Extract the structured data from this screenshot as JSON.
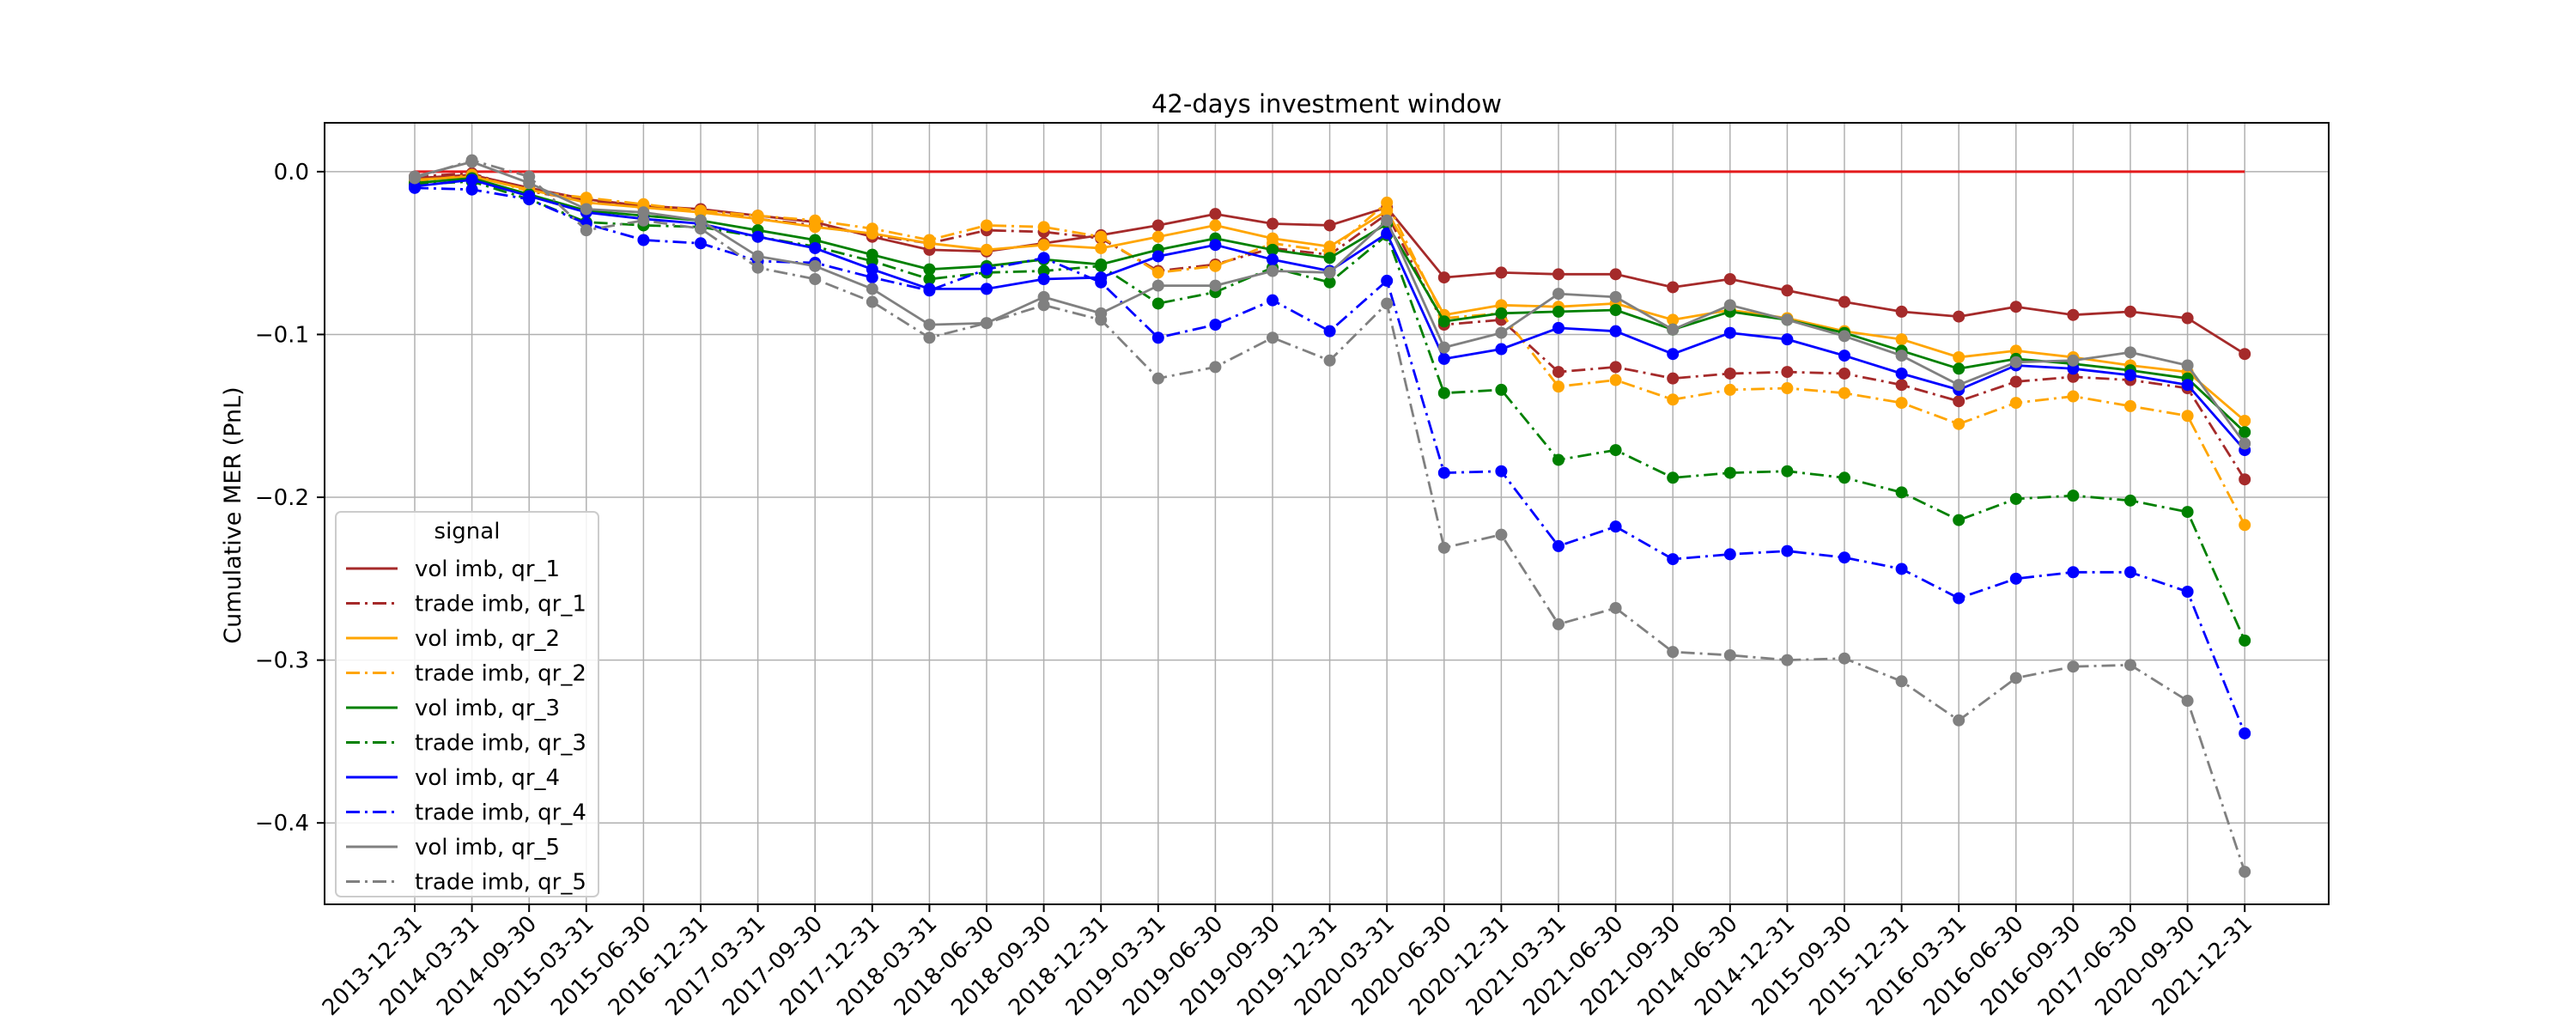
{
  "chart_data": {
    "type": "line",
    "title": "42-days investment window",
    "xlabel": "",
    "ylabel": "Cumulative MER (PnL)",
    "ylim": [
      -0.45,
      0.03
    ],
    "yticks": [
      "0.0",
      "−0.1",
      "−0.2",
      "−0.3",
      "−0.4"
    ],
    "grid": true,
    "legend": {
      "title": "signal",
      "placement": "center-left"
    },
    "baseline": {
      "value": 0.0,
      "color": "#e41a1c"
    },
    "categories": [
      "2013-12-31",
      "2014-03-31",
      "2014-09-30",
      "2015-03-31",
      "2015-06-30",
      "2016-12-31",
      "2017-03-31",
      "2017-09-30",
      "2017-12-31",
      "2018-03-31",
      "2018-06-30",
      "2018-09-30",
      "2018-12-31",
      "2019-03-31",
      "2019-06-30",
      "2019-09-30",
      "2019-12-31",
      "2020-03-31",
      "2020-06-30",
      "2020-12-31",
      "2021-03-31",
      "2021-06-30",
      "2021-09-30",
      "2014-06-30",
      "2014-12-31",
      "2015-09-30",
      "2015-12-31",
      "2016-03-31",
      "2016-06-30",
      "2016-09-30",
      "2017-06-30",
      "2020-09-30",
      "2021-12-31"
    ],
    "series": [
      {
        "name": "vol imb, qr_1",
        "color": "#a52a2a",
        "dash": "solid",
        "values": [
          -0.004,
          -0.002,
          -0.01,
          -0.017,
          -0.021,
          -0.023,
          -0.027,
          -0.031,
          -0.04,
          -0.048,
          -0.049,
          -0.044,
          -0.039,
          -0.033,
          -0.026,
          -0.032,
          -0.033,
          -0.022,
          -0.065,
          -0.062,
          -0.063,
          -0.063,
          -0.071,
          -0.066,
          -0.073,
          -0.08,
          -0.086,
          -0.089,
          -0.083,
          -0.088,
          -0.086,
          -0.09,
          -0.112
        ]
      },
      {
        "name": "trade imb, qr_1",
        "color": "#a52a2a",
        "dash": "dashdot",
        "values": [
          -0.003,
          -0.001,
          -0.012,
          -0.018,
          -0.022,
          -0.024,
          -0.029,
          -0.033,
          -0.039,
          -0.044,
          -0.036,
          -0.037,
          -0.041,
          -0.061,
          -0.057,
          -0.047,
          -0.051,
          -0.026,
          -0.094,
          -0.091,
          -0.123,
          -0.12,
          -0.127,
          -0.124,
          -0.123,
          -0.124,
          -0.131,
          -0.141,
          -0.129,
          -0.126,
          -0.128,
          -0.133,
          -0.189
        ]
      },
      {
        "name": "vol imb, qr_2",
        "color": "#ffa500",
        "dash": "solid",
        "values": [
          -0.005,
          -0.003,
          -0.011,
          -0.019,
          -0.022,
          -0.025,
          -0.029,
          -0.034,
          -0.038,
          -0.044,
          -0.048,
          -0.045,
          -0.047,
          -0.04,
          -0.033,
          -0.041,
          -0.046,
          -0.024,
          -0.088,
          -0.082,
          -0.083,
          -0.081,
          -0.091,
          -0.085,
          -0.09,
          -0.098,
          -0.103,
          -0.114,
          -0.11,
          -0.114,
          -0.119,
          -0.123,
          -0.153
        ]
      },
      {
        "name": "trade imb, qr_2",
        "color": "#ffa500",
        "dash": "dashdot",
        "values": [
          -0.006,
          -0.002,
          -0.012,
          -0.016,
          -0.02,
          -0.024,
          -0.027,
          -0.03,
          -0.035,
          -0.042,
          -0.033,
          -0.034,
          -0.04,
          -0.062,
          -0.058,
          -0.044,
          -0.049,
          -0.019,
          -0.09,
          -0.087,
          -0.132,
          -0.128,
          -0.14,
          -0.134,
          -0.133,
          -0.136,
          -0.142,
          -0.155,
          -0.142,
          -0.138,
          -0.144,
          -0.15,
          -0.217
        ]
      },
      {
        "name": "vol imb, qr_3",
        "color": "#008000",
        "dash": "solid",
        "values": [
          -0.007,
          -0.004,
          -0.014,
          -0.024,
          -0.027,
          -0.03,
          -0.036,
          -0.042,
          -0.051,
          -0.06,
          -0.058,
          -0.054,
          -0.057,
          -0.048,
          -0.041,
          -0.048,
          -0.053,
          -0.032,
          -0.092,
          -0.087,
          -0.086,
          -0.085,
          -0.097,
          -0.086,
          -0.091,
          -0.099,
          -0.11,
          -0.121,
          -0.115,
          -0.118,
          -0.122,
          -0.127,
          -0.16
        ]
      },
      {
        "name": "trade imb, qr_3",
        "color": "#008000",
        "dash": "dashdot",
        "values": [
          -0.008,
          -0.006,
          -0.017,
          -0.031,
          -0.033,
          -0.034,
          -0.04,
          -0.046,
          -0.055,
          -0.066,
          -0.062,
          -0.061,
          -0.058,
          -0.081,
          -0.074,
          -0.059,
          -0.068,
          -0.039,
          -0.136,
          -0.134,
          -0.177,
          -0.171,
          -0.188,
          -0.185,
          -0.184,
          -0.188,
          -0.197,
          -0.214,
          -0.201,
          -0.199,
          -0.202,
          -0.209,
          -0.288
        ]
      },
      {
        "name": "vol imb, qr_4",
        "color": "#0000ff",
        "dash": "solid",
        "values": [
          -0.009,
          -0.005,
          -0.015,
          -0.025,
          -0.029,
          -0.032,
          -0.04,
          -0.047,
          -0.06,
          -0.072,
          -0.072,
          -0.066,
          -0.065,
          -0.052,
          -0.045,
          -0.054,
          -0.061,
          -0.038,
          -0.115,
          -0.109,
          -0.096,
          -0.098,
          -0.112,
          -0.099,
          -0.103,
          -0.113,
          -0.124,
          -0.134,
          -0.119,
          -0.121,
          -0.125,
          -0.131,
          -0.171
        ]
      },
      {
        "name": "trade imb, qr_4",
        "color": "#0000ff",
        "dash": "dashdot",
        "values": [
          -0.01,
          -0.011,
          -0.017,
          -0.032,
          -0.042,
          -0.044,
          -0.055,
          -0.056,
          -0.065,
          -0.073,
          -0.06,
          -0.053,
          -0.068,
          -0.102,
          -0.094,
          -0.079,
          -0.098,
          -0.067,
          -0.185,
          -0.184,
          -0.23,
          -0.218,
          -0.238,
          -0.235,
          -0.233,
          -0.237,
          -0.244,
          -0.262,
          -0.25,
          -0.246,
          -0.246,
          -0.258,
          -0.345
        ]
      },
      {
        "name": "vol imb, qr_5",
        "color": "#808080",
        "dash": "solid",
        "values": [
          -0.003,
          0.006,
          -0.007,
          -0.023,
          -0.025,
          -0.03,
          -0.052,
          -0.058,
          -0.072,
          -0.094,
          -0.093,
          -0.077,
          -0.087,
          -0.07,
          -0.07,
          -0.061,
          -0.062,
          -0.03,
          -0.108,
          -0.099,
          -0.075,
          -0.077,
          -0.097,
          -0.082,
          -0.091,
          -0.101,
          -0.113,
          -0.131,
          -0.117,
          -0.116,
          -0.111,
          -0.119,
          -0.167
        ]
      },
      {
        "name": "trade imb, qr_5",
        "color": "#808080",
        "dash": "dashdot",
        "values": [
          -0.004,
          0.007,
          -0.003,
          -0.036,
          -0.03,
          -0.035,
          -0.059,
          -0.066,
          -0.08,
          -0.102,
          -0.093,
          -0.082,
          -0.091,
          -0.127,
          -0.12,
          -0.102,
          -0.116,
          -0.081,
          -0.231,
          -0.223,
          -0.278,
          -0.268,
          -0.295,
          -0.297,
          -0.3,
          -0.299,
          -0.313,
          -0.337,
          -0.311,
          -0.304,
          -0.303,
          -0.325,
          -0.43
        ]
      }
    ]
  }
}
